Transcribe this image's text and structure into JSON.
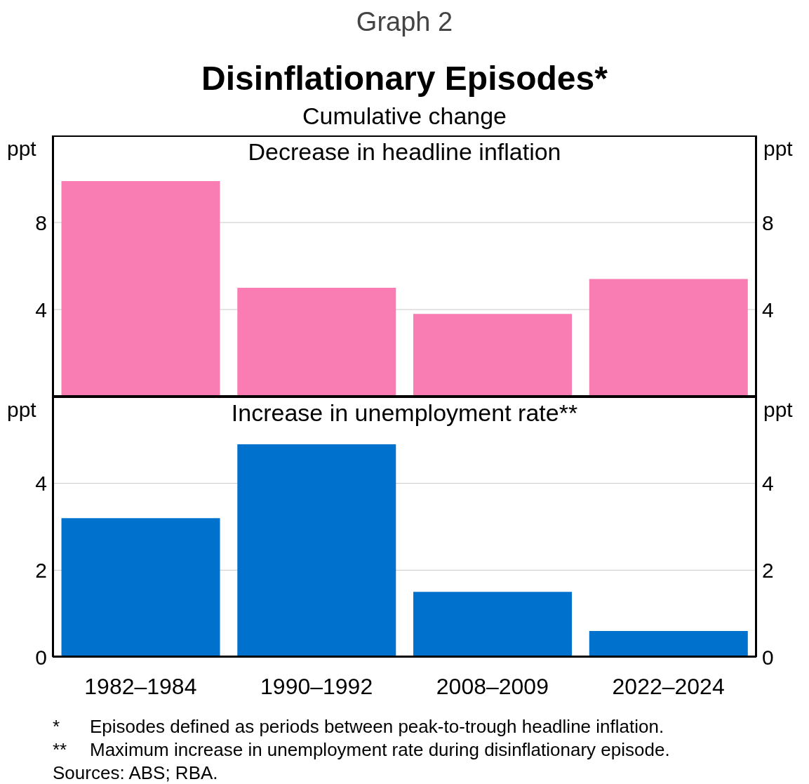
{
  "chart_data": [
    {
      "type": "bar",
      "title": "Disinflationary Episodes*",
      "subtitle": "Cumulative change",
      "annotations": [
        "Graph 2",
        "Decrease in headline inflation"
      ],
      "categories": [
        null,
        null,
        null,
        null
      ],
      "values": [
        9.9,
        5.0,
        3.8,
        5.4
      ],
      "color": "#f97cb3",
      "ylabel": "ppt",
      "y2label": "ppt",
      "ylim": [
        0,
        12
      ],
      "yticks": [
        4,
        8
      ],
      "y2lim": [
        0,
        12
      ],
      "y2ticks": [
        4,
        8
      ],
      "grid": "y",
      "tick_labels": "y"
    },
    {
      "type": "bar",
      "title": "Increase in unemployment rate**",
      "annotations": [
        "*\tEpisodes defined as periods between peak-to-trough headline inflation.",
        "**\tMaximum increase in unemployment rate during disinflationary episode.",
        "Sources:  ABS; RBA."
      ],
      "categories": [
        "1982–1984",
        "1990–1992",
        "2008–2009",
        "2022–2024"
      ],
      "values": [
        3.2,
        4.9,
        1.5,
        0.6
      ],
      "color": "#0072ce",
      "ylabel": "ppt",
      "y2label": "ppt",
      "ylim": [
        0,
        6
      ],
      "yticks": [
        0,
        2,
        4
      ],
      "y2lim": [
        0,
        6
      ],
      "y2ticks": [
        0,
        2,
        4
      ],
      "grid": "y"
    }
  ]
}
